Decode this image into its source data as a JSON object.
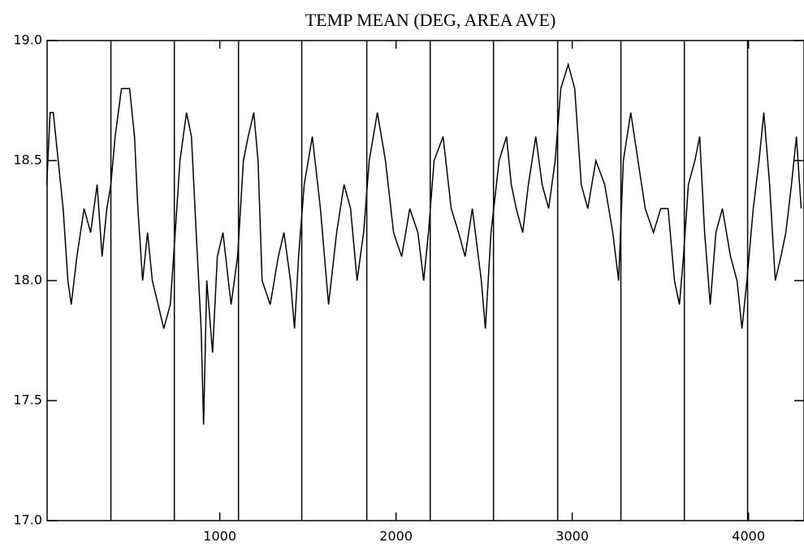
{
  "chart_data": {
    "type": "line",
    "title": "TEMP MEAN (DEG, AREA AVE)",
    "x": [
      18,
      37,
      55,
      83,
      111,
      138,
      157,
      189,
      230,
      267,
      304,
      332,
      359,
      382,
      406,
      442,
      488,
      516,
      535,
      562,
      590,
      617,
      650,
      682,
      719,
      747,
      774,
      811,
      839,
      866,
      894,
      908,
      926,
      959,
      986,
      1018,
      1064,
      1101,
      1134,
      1161,
      1193,
      1217,
      1240,
      1286,
      1332,
      1364,
      1401,
      1424,
      1447,
      1479,
      1525,
      1571,
      1617,
      1663,
      1705,
      1742,
      1779,
      1816,
      1848,
      1894,
      1940,
      1986,
      2032,
      2078,
      2124,
      2157,
      2184,
      2216,
      2267,
      2313,
      2355,
      2392,
      2433,
      2484,
      2507,
      2539,
      2585,
      2627,
      2654,
      2682,
      2719,
      2751,
      2793,
      2829,
      2866,
      2903,
      2935,
      2977,
      3014,
      3051,
      3088,
      3134,
      3184,
      3230,
      3263,
      3290,
      3332,
      3373,
      3414,
      3461,
      3502,
      3544,
      3580,
      3608,
      3631,
      3659,
      3696,
      3723,
      3751,
      3783,
      3815,
      3852,
      3898,
      3935,
      3963,
      3991,
      4027,
      4060,
      4087,
      4120,
      4152,
      4184,
      4212,
      4244,
      4272,
      4299
    ],
    "series": [
      {
        "color": "#000000",
        "values": [
          18.4,
          18.7,
          18.7,
          18.5,
          18.3,
          18.0,
          17.9,
          18.1,
          18.3,
          18.2,
          18.4,
          18.1,
          18.3,
          18.4,
          18.6,
          18.8,
          18.8,
          18.6,
          18.3,
          18.0,
          18.2,
          18.0,
          17.9,
          17.8,
          17.9,
          18.2,
          18.5,
          18.7,
          18.6,
          18.2,
          17.8,
          17.4,
          18.0,
          17.7,
          18.1,
          18.2,
          17.9,
          18.1,
          18.5,
          18.6,
          18.7,
          18.5,
          18.0,
          17.9,
          18.1,
          18.2,
          18.0,
          17.8,
          18.1,
          18.4,
          18.6,
          18.3,
          17.9,
          18.2,
          18.4,
          18.3,
          18.0,
          18.2,
          18.5,
          18.7,
          18.5,
          18.2,
          18.1,
          18.3,
          18.2,
          18.0,
          18.2,
          18.5,
          18.6,
          18.3,
          18.2,
          18.1,
          18.3,
          18.0,
          17.8,
          18.2,
          18.5,
          18.6,
          18.4,
          18.3,
          18.2,
          18.4,
          18.6,
          18.4,
          18.3,
          18.5,
          18.8,
          18.9,
          18.8,
          18.4,
          18.3,
          18.5,
          18.4,
          18.2,
          18.0,
          18.5,
          18.7,
          18.5,
          18.3,
          18.2,
          18.3,
          18.3,
          18.0,
          17.9,
          18.1,
          18.4,
          18.5,
          18.6,
          18.2,
          17.9,
          18.2,
          18.3,
          18.1,
          18.0,
          17.8,
          18.0,
          18.3,
          18.5,
          18.7,
          18.4,
          18.0,
          18.1,
          18.2,
          18.4,
          18.6,
          18.3
        ]
      }
    ],
    "vlines": [
      382,
      742,
      1106,
      1465,
      1834,
      2194,
      2553,
      2917,
      3276,
      3636,
      3995
    ],
    "xlim": [
      20,
      4315
    ],
    "xticks": [
      1000,
      2000,
      3000,
      4000
    ],
    "ylim": [
      17,
      19
    ],
    "yticks": [
      {
        "value": 17,
        "label": "17.0"
      },
      17.5,
      {
        "value": 18,
        "label": "18.0"
      },
      18.5,
      {
        "value": 19,
        "label": "19.0"
      }
    ]
  }
}
